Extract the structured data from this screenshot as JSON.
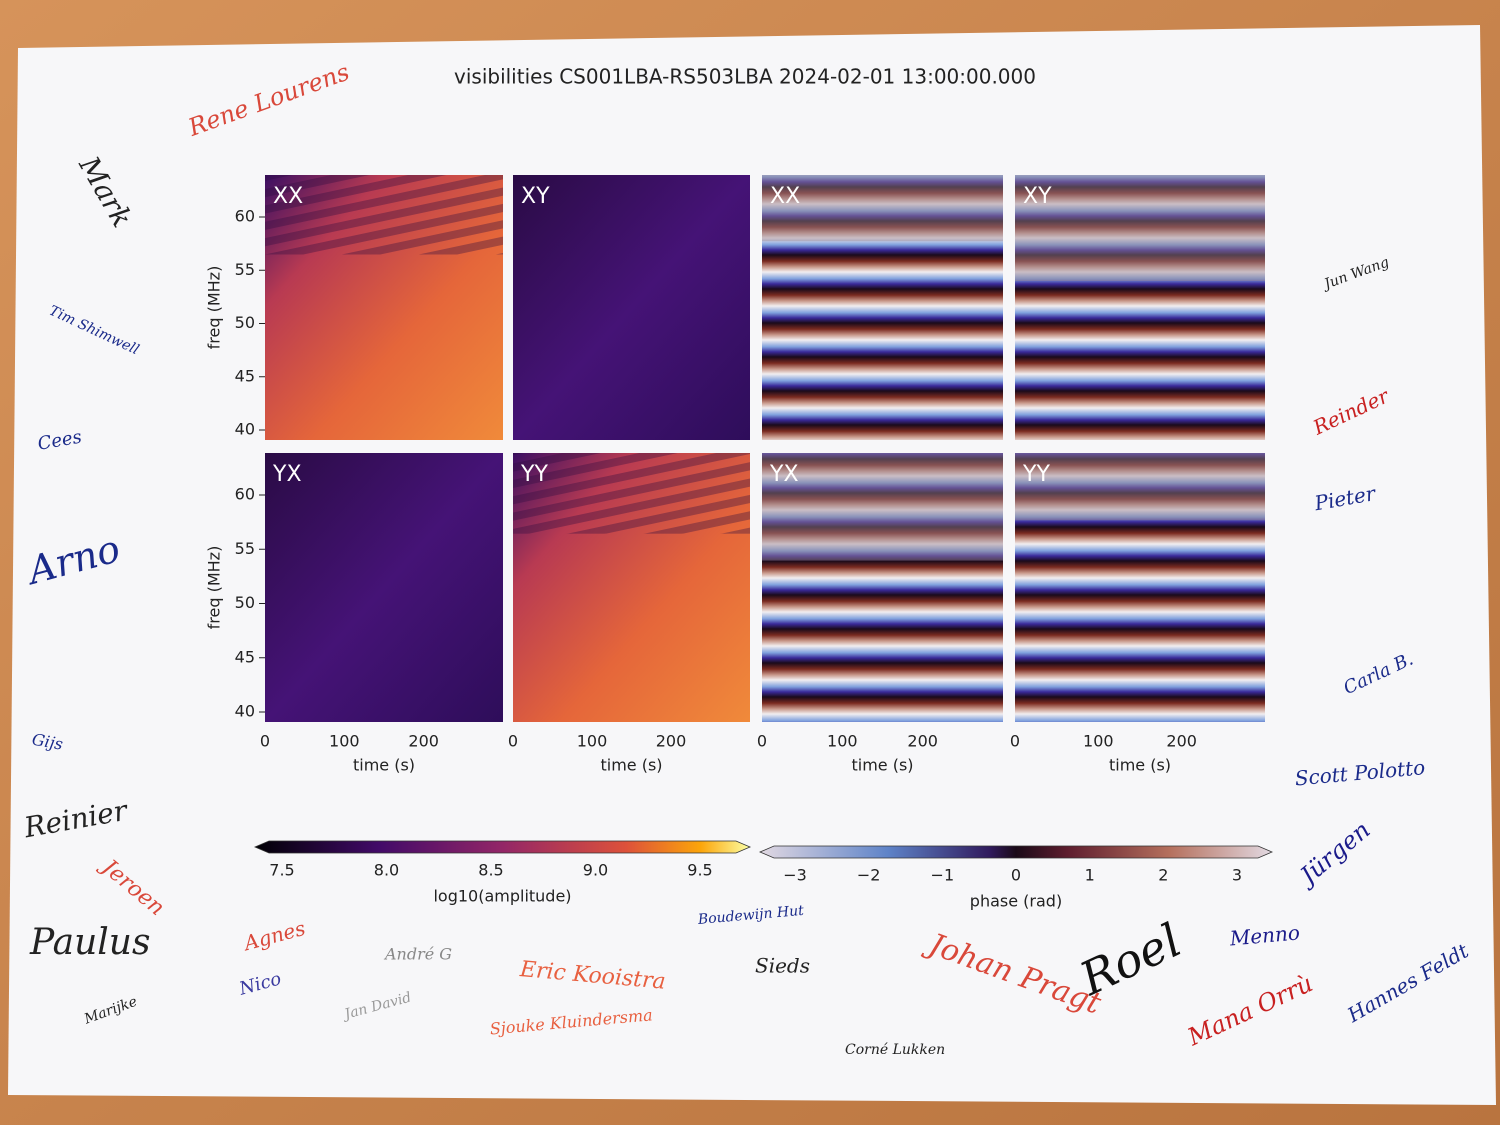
{
  "title": "visibilities CS001LBA-RS503LBA 2024-02-01 13:00:00.000",
  "panels": [
    {
      "label": "XX",
      "kind": "amplitude",
      "level": "high"
    },
    {
      "label": "XY",
      "kind": "amplitude",
      "level": "low"
    },
    {
      "label": "XX",
      "kind": "phase",
      "level": "high"
    },
    {
      "label": "XY",
      "kind": "phase",
      "level": "low"
    },
    {
      "label": "YX",
      "kind": "amplitude",
      "level": "low"
    },
    {
      "label": "YY",
      "kind": "amplitude",
      "level": "high"
    },
    {
      "label": "YX",
      "kind": "phase",
      "level": "low"
    },
    {
      "label": "YY",
      "kind": "phase",
      "level": "high"
    }
  ],
  "y_axis": {
    "label": "freq (MHz)",
    "ticks": [
      "40",
      "45",
      "50",
      "55",
      "60"
    ]
  },
  "x_axis": {
    "label": "time (s)",
    "ticks": [
      "0",
      "100",
      "200"
    ]
  },
  "colorbars": [
    {
      "label": "log10(amplitude)",
      "ticks": [
        "7.5",
        "8.0",
        "8.5",
        "9.0",
        "9.5"
      ]
    },
    {
      "label": "phase (rad)",
      "ticks": [
        "−3",
        "−2",
        "−1",
        "0",
        "1",
        "2",
        "3"
      ]
    }
  ],
  "signatures": [
    "Mark",
    "Rene Lourens",
    "Tim Shimwell",
    "Cees",
    "Arno",
    "Gijs",
    "Reinier",
    "Jeroen",
    "Paulus",
    "Marijke",
    "Agnes",
    "Nico",
    "André G",
    "Jan David",
    "Eric Kooistra",
    "Sjouke Kluindersma",
    "Boudewijn Hut",
    "Sieds",
    "Corné Lukken",
    "Johan Pragt",
    "Roel",
    "Menno",
    "Mana Orrù",
    "Hannes Feldt",
    "Jun Wang",
    "Reinder",
    "Pieter",
    "Carla B.",
    "Scott Polotto",
    "Jürgen"
  ]
}
